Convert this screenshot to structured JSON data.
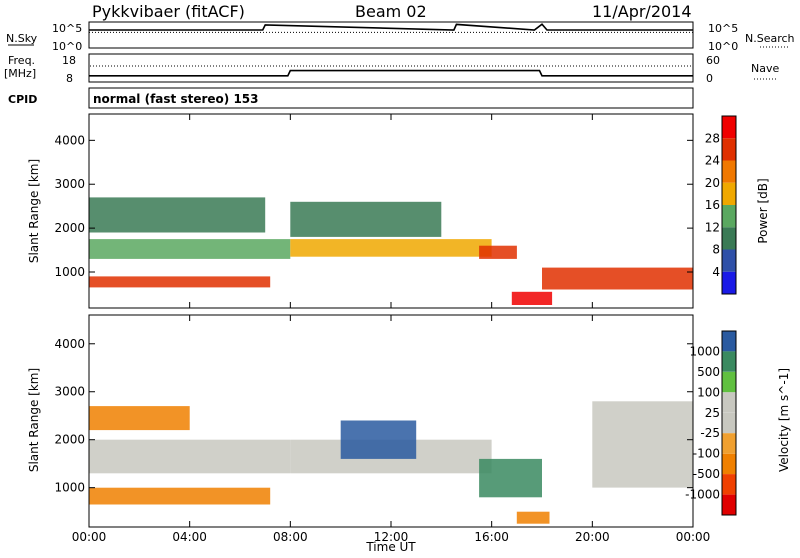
{
  "header": {
    "station": "Pykkvibaer (fitACF)",
    "beam": "Beam 02",
    "date": "11/Apr/2014"
  },
  "labels": {
    "nsky": "N.Sky",
    "nsky_top": "10^5",
    "nsky_bot": "10^0",
    "nsearch": "N.Search",
    "nsearch_top": "10^5",
    "nsearch_bot": "10^0",
    "freq": "Freq.",
    "freq_unit": "[MHz]",
    "freq_top": "18",
    "freq_bot": "8",
    "nave": "Nave",
    "nave_top": "60",
    "nave_bot": "0",
    "cpid": "CPID",
    "cpid_value": "normal (fast stereo) 153",
    "time_axis": "Time UT"
  },
  "colors": {
    "power_scale": [
      "#1a1ae6",
      "#2f50a8",
      "#3a7a55",
      "#5aa860",
      "#f0a800",
      "#f07800",
      "#e03000",
      "#f00000"
    ],
    "velocity_scale": [
      "#e00000",
      "#f04000",
      "#f08000",
      "#f0a030",
      "#c8c8c0",
      "#c8c8c0",
      "#60c040",
      "#3a8a60",
      "#2a5aa0",
      "#1a2ab0"
    ],
    "velocity_mean": "#c8c8c0",
    "scatter_power_main": "#e85000"
  },
  "chart_data": [
    {
      "type": "line",
      "title": "N.Sky / N.Search",
      "x": [
        0,
        6.9,
        7.0,
        14.5,
        14.6,
        17.7,
        18.0,
        18.2,
        24
      ],
      "series": [
        {
          "name": "N.Sky",
          "values": [
            5000,
            5000,
            60000,
            5000,
            80000,
            5000,
            90000,
            5000,
            5000
          ]
        }
      ],
      "ylim": [
        1,
        100000
      ],
      "log": true
    },
    {
      "type": "line",
      "title": "Freq. / Nave",
      "x": [
        0,
        7.9,
        8.0,
        17.9,
        18.0,
        24
      ],
      "series": [
        {
          "name": "Freq.",
          "values": [
            10.0,
            10.0,
            12.0,
            12.0,
            10.0,
            10.0
          ]
        }
      ],
      "ylim": [
        8,
        18
      ]
    },
    {
      "type": "heatmap",
      "title": "Power",
      "xlabel": "Time UT",
      "ylabel": "Slant Range [km]",
      "xticks": [
        "00:00",
        "04:00",
        "08:00",
        "12:00",
        "16:00",
        "20:00",
        "00:00"
      ],
      "yticks": [
        "1000",
        "2000",
        "3000",
        "4000"
      ],
      "xlim": [
        0,
        24
      ],
      "ylim": [
        180,
        4600
      ],
      "colorbar_label": "Power [dB]",
      "colorbar_ticks": [
        "4",
        "8",
        "12",
        "16",
        "20",
        "24",
        "28"
      ],
      "bands": [
        {
          "x": [
            0,
            7.2
          ],
          "range": [
            650,
            900
          ],
          "value": 26
        },
        {
          "x": [
            0,
            8
          ],
          "range": [
            1300,
            1750
          ],
          "value": 14
        },
        {
          "x": [
            8,
            16
          ],
          "range": [
            1350,
            1750
          ],
          "value": 18
        },
        {
          "x": [
            15.5,
            17
          ],
          "range": [
            1300,
            1600
          ],
          "value": 27
        },
        {
          "x": [
            16.8,
            18.4
          ],
          "range": [
            250,
            550
          ],
          "value": 28
        },
        {
          "x": [
            18,
            24
          ],
          "range": [
            600,
            1100
          ],
          "value": 24
        },
        {
          "x": [
            0,
            7
          ],
          "range": [
            1900,
            2700
          ],
          "value": 10
        },
        {
          "x": [
            8,
            14
          ],
          "range": [
            1800,
            2600
          ],
          "value": 8
        }
      ]
    },
    {
      "type": "heatmap",
      "title": "Velocity",
      "xlabel": "Time UT",
      "ylabel": "Slant Range [km]",
      "xticks": [
        "00:00",
        "04:00",
        "08:00",
        "12:00",
        "16:00",
        "20:00",
        "00:00"
      ],
      "yticks": [
        "1000",
        "2000",
        "3000",
        "4000"
      ],
      "xlim": [
        0,
        24
      ],
      "ylim": [
        180,
        4600
      ],
      "colorbar_label": "Velocity [m s^-1]",
      "colorbar_ticks": [
        "1000",
        "500",
        "100",
        "25",
        "-25",
        "-100",
        "-500",
        "-1000"
      ],
      "bands": [
        {
          "x": [
            0,
            7.2
          ],
          "range": [
            650,
            1000
          ],
          "value": -250
        },
        {
          "x": [
            0,
            8
          ],
          "range": [
            1300,
            2000
          ],
          "value": 0
        },
        {
          "x": [
            8,
            16
          ],
          "range": [
            1300,
            2000
          ],
          "value": 0
        },
        {
          "x": [
            15.5,
            18
          ],
          "range": [
            800,
            1600
          ],
          "value": 200
        },
        {
          "x": [
            17,
            18.3
          ],
          "range": [
            250,
            500
          ],
          "value": -400
        },
        {
          "x": [
            20,
            24
          ],
          "range": [
            1000,
            2800
          ],
          "value": 0
        },
        {
          "x": [
            0,
            4
          ],
          "range": [
            2200,
            2700
          ],
          "value": -200
        },
        {
          "x": [
            10,
            13
          ],
          "range": [
            1600,
            2400
          ],
          "value": 600
        }
      ]
    }
  ]
}
